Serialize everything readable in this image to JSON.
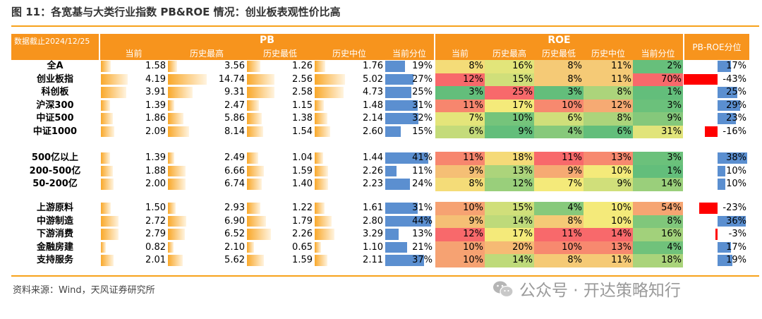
{
  "title": "图 11：各宽基与大类行业指数 PB&ROE 情况：创业板表观性价比高",
  "source": "资料来源：Wind，天风证券研究所",
  "watermark": "公众号 · 开达策略知行",
  "chart_data": {
    "type": "table",
    "date_label": "数据截止2024/12/25",
    "group_headers": [
      "PB",
      "ROE",
      "PB-ROE分位"
    ],
    "pb_columns": [
      "当前",
      "历史最高",
      "历史最低",
      "历史中位",
      "当前分位"
    ],
    "roe_columns": [
      "当前",
      "历史最高",
      "历史最低",
      "历史中位",
      "当前分位"
    ],
    "groups": [
      {
        "rows": [
          {
            "name": "全A",
            "pb": [
              1.58,
              3.56,
              1.26,
              1.76
            ],
            "pb_pct": "19%",
            "pb_pct_v": 19,
            "roe": [
              "8%",
              "16%",
              "8%",
              "11%",
              "2%"
            ],
            "roe_v": [
              8,
              16,
              8,
              11,
              2
            ],
            "pbroe": "17%",
            "pbroe_v": 17
          },
          {
            "name": "创业板指",
            "pb": [
              4.19,
              14.74,
              2.56,
              5.02
            ],
            "pb_pct": "27%",
            "pb_pct_v": 27,
            "roe": [
              "12%",
              "15%",
              "8%",
              "11%",
              "70%"
            ],
            "roe_v": [
              12,
              15,
              8,
              11,
              70
            ],
            "pbroe": "-43%",
            "pbroe_v": -43
          },
          {
            "name": "科创板",
            "pb": [
              3.91,
              9.31,
              2.58,
              4.73
            ],
            "pb_pct": "25%",
            "pb_pct_v": 25,
            "roe": [
              "3%",
              "25%",
              "3%",
              "8%",
              "1%"
            ],
            "roe_v": [
              3,
              25,
              3,
              8,
              1
            ],
            "pbroe": "25%",
            "pbroe_v": 25
          },
          {
            "name": "沪深300",
            "pb": [
              1.39,
              2.47,
              1.15,
              1.48
            ],
            "pb_pct": "31%",
            "pb_pct_v": 31,
            "roe": [
              "11%",
              "17%",
              "10%",
              "12%",
              "3%"
            ],
            "roe_v": [
              11,
              17,
              10,
              12,
              3
            ],
            "pbroe": "29%",
            "pbroe_v": 29
          },
          {
            "name": "中证500",
            "pb": [
              1.86,
              5.86,
              1.38,
              2.14
            ],
            "pb_pct": "32%",
            "pb_pct_v": 32,
            "roe": [
              "7%",
              "10%",
              "6%",
              "8%",
              "9%"
            ],
            "roe_v": [
              7,
              10,
              6,
              8,
              9
            ],
            "pbroe": "23%",
            "pbroe_v": 23
          },
          {
            "name": "中证1000",
            "pb": [
              2.09,
              8.14,
              1.54,
              2.6
            ],
            "pb_pct": "15%",
            "pb_pct_v": 15,
            "roe": [
              "6%",
              "9%",
              "4%",
              "6%",
              "31%"
            ],
            "roe_v": [
              6,
              9,
              4,
              6,
              31
            ],
            "pbroe": "-16%",
            "pbroe_v": -16
          }
        ]
      },
      {
        "rows": [
          {
            "name": "500亿以上",
            "pb": [
              1.39,
              2.49,
              1.04,
              1.44
            ],
            "pb_pct": "41%",
            "pb_pct_v": 41,
            "roe": [
              "11%",
              "18%",
              "11%",
              "13%",
              "3%"
            ],
            "roe_v": [
              11,
              18,
              11,
              13,
              3
            ],
            "pbroe": "38%",
            "pbroe_v": 38
          },
          {
            "name": "200-500亿",
            "pb": [
              1.88,
              6.66,
              1.59,
              2.26
            ],
            "pb_pct": "11%",
            "pb_pct_v": 11,
            "roe": [
              "9%",
              "13%",
              "9%",
              "10%",
              "1%"
            ],
            "roe_v": [
              9,
              13,
              9,
              10,
              1
            ],
            "pbroe": "10%",
            "pbroe_v": 10
          },
          {
            "name": "50-200亿",
            "pb": [
              2.0,
              6.74,
              1.4,
              2.23
            ],
            "pb_pct": "24%",
            "pb_pct_v": 24,
            "roe": [
              "8%",
              "12%",
              "7%",
              "9%",
              "14%"
            ],
            "roe_v": [
              8,
              12,
              7,
              9,
              14
            ],
            "pbroe": "10%",
            "pbroe_v": 10
          }
        ]
      },
      {
        "rows": [
          {
            "name": "上游原料",
            "pb": [
              1.5,
              2.93,
              1.22,
              1.61
            ],
            "pb_pct": "31%",
            "pb_pct_v": 31,
            "roe": [
              "10%",
              "15%",
              "4%",
              "10%",
              "54%"
            ],
            "roe_v": [
              10,
              15,
              4,
              10,
              54
            ],
            "pbroe": "-23%",
            "pbroe_v": -23
          },
          {
            "name": "中游制造",
            "pb": [
              2.72,
              6.9,
              1.79,
              2.8
            ],
            "pb_pct": "44%",
            "pb_pct_v": 44,
            "roe": [
              "9%",
              "14%",
              "8%",
              "10%",
              "8%"
            ],
            "roe_v": [
              9,
              14,
              8,
              10,
              8
            ],
            "pbroe": "36%",
            "pbroe_v": 36
          },
          {
            "name": "下游消费",
            "pb": [
              2.79,
              6.52,
              2.26,
              3.29
            ],
            "pb_pct": "13%",
            "pb_pct_v": 13,
            "roe": [
              "12%",
              "17%",
              "11%",
              "14%",
              "16%"
            ],
            "roe_v": [
              12,
              17,
              11,
              14,
              16
            ],
            "pbroe": "-3%",
            "pbroe_v": -3
          },
          {
            "name": "金融房建",
            "pb": [
              0.82,
              2.1,
              0.65,
              1.1
            ],
            "pb_pct": "21%",
            "pb_pct_v": 21,
            "roe": [
              "10%",
              "20%",
              "10%",
              "13%",
              "4%"
            ],
            "roe_v": [
              10,
              20,
              10,
              13,
              4
            ],
            "pbroe": "17%",
            "pbroe_v": 17
          },
          {
            "name": "支持服务",
            "pb": [
              2.01,
              5.62,
              1.59,
              2.11
            ],
            "pb_pct": "37%",
            "pb_pct_v": 37,
            "roe": [
              "10%",
              "14%",
              "8%",
              "11%",
              "18%"
            ],
            "roe_v": [
              10,
              14,
              8,
              11,
              18
            ],
            "pbroe": "19%",
            "pbroe_v": 19
          }
        ]
      }
    ]
  },
  "colors": {
    "accent": "#f7941d",
    "pb_bar": "#f9a82a",
    "pct_bar": "#5b8fd0",
    "negative_bar": "#ff0000",
    "heat_low": "#ffe98a",
    "heat_mid": "#f4ea7a",
    "heat_green": "#63be7b",
    "heat_red": "#f8696b"
  }
}
